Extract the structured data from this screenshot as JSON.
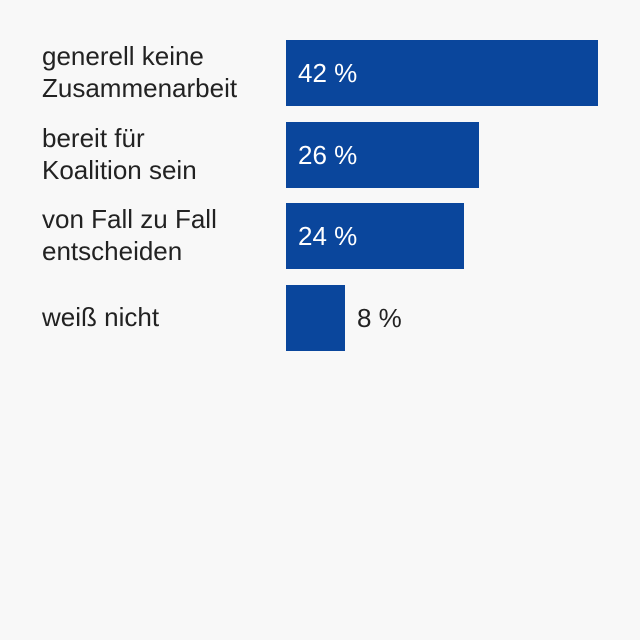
{
  "chart_data": {
    "type": "bar",
    "orientation": "horizontal",
    "title": "",
    "xlabel": "",
    "ylabel": "",
    "xlim": [
      0,
      42
    ],
    "grid": false,
    "bar_color": "#0a469c",
    "value_label_inside_color": "#ffffff",
    "value_label_outside_color": "#222222",
    "categories": [
      "generell keine\nZusammenarbeit",
      "bereit für\nKoalition sein",
      "von Fall zu Fall\nentscheiden",
      "weiß nicht"
    ],
    "values": [
      42,
      26,
      24,
      8
    ],
    "value_labels": [
      "42 %",
      "26 %",
      "24 %",
      "8 %"
    ]
  }
}
